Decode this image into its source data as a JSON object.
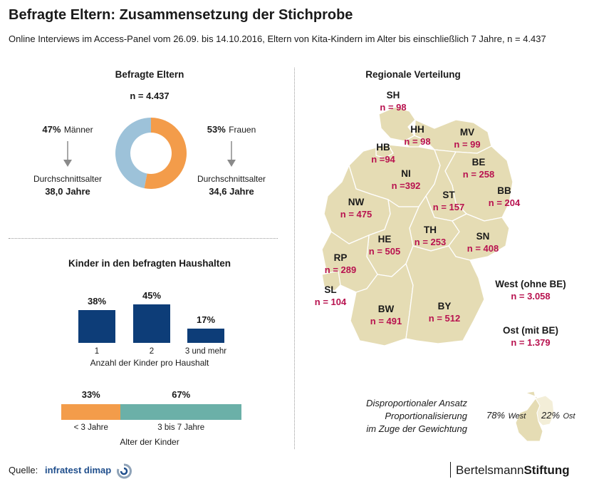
{
  "title": "Befragte Eltern: Zusammensetzung der Stichprobe",
  "subtitle": "Online Interviews im Access-Panel vom 26.09. bis 14.10.2016, Eltern von Kita-Kindern im Alter bis einschließlich 7 Jahre, n = 4.437",
  "colors": {
    "orange": "#f39c4a",
    "lightblue": "#9dc2d9",
    "navy": "#0d3d78",
    "teal": "#6bb0a8",
    "map_fill": "#e5dcb4",
    "map_stroke": "#ffffff",
    "magenta": "#b8124f"
  },
  "parents": {
    "title": "Befragte Eltern",
    "n": "n = 4.437",
    "men_pct": "47%",
    "men_label": "Männer",
    "women_pct": "53%",
    "women_label": "Frauen",
    "avg_label": "Durchschnittsalter",
    "men_avg": "38,0 Jahre",
    "women_avg": "34,6 Jahre"
  },
  "children": {
    "title": "Kinder in den befragten Haushalten",
    "xlabel": "Anzahl der Kinder pro Haushalt",
    "age_title": "Alter der Kinder"
  },
  "regional": {
    "title": "Regionale Verteilung",
    "west_label": "West (ohne BE)",
    "west_n": "n = 3.058",
    "east_label": "Ost (mit BE)",
    "east_n": "n = 1.379"
  },
  "weighting": {
    "line1": "Disproportionaler Ansatz",
    "line2": "Proportionalisierung",
    "line3": "im Zuge der Gewichtung",
    "west_pct": "78%",
    "west_label": "West",
    "east_pct": "22%",
    "east_label": "Ost"
  },
  "source": {
    "label": "Quelle:",
    "name": "infratest dimap",
    "logo": "infratest-dimap-logo-icon"
  },
  "brand": {
    "part1": "Bertelsmann",
    "part2": "Stiftung"
  },
  "chart_data": [
    {
      "type": "pie",
      "title": "Befragte Eltern",
      "categories": [
        "Männer",
        "Frauen"
      ],
      "values": [
        47,
        53
      ]
    },
    {
      "type": "bar",
      "title": "Kinder in den befragten Haushalten",
      "xlabel": "Anzahl der Kinder pro Haushalt",
      "categories": [
        "1",
        "2",
        "3 und mehr"
      ],
      "values": [
        38,
        45,
        17
      ],
      "labels": [
        "38%",
        "45%",
        "17%"
      ]
    },
    {
      "type": "bar",
      "title": "Alter der Kinder",
      "categories": [
        "< 3 Jahre",
        "3 bis 7 Jahre"
      ],
      "values": [
        33,
        67
      ],
      "labels": [
        "33%",
        "67%"
      ]
    },
    {
      "type": "table",
      "title": "Regionale Verteilung",
      "states": [
        {
          "code": "SH",
          "n": "n = 98"
        },
        {
          "code": "HH",
          "n": "n = 98"
        },
        {
          "code": "MV",
          "n": "n = 99"
        },
        {
          "code": "HB",
          "n": "n =94"
        },
        {
          "code": "NI",
          "n": "n =392"
        },
        {
          "code": "BE",
          "n": "n = 258"
        },
        {
          "code": "BB",
          "n": "n = 204"
        },
        {
          "code": "ST",
          "n": "n = 157"
        },
        {
          "code": "NW",
          "n": "n = 475"
        },
        {
          "code": "TH",
          "n": "n = 253"
        },
        {
          "code": "SN",
          "n": "n = 408"
        },
        {
          "code": "HE",
          "n": "n = 505"
        },
        {
          "code": "RP",
          "n": "n = 289"
        },
        {
          "code": "SL",
          "n": "n = 104"
        },
        {
          "code": "BW",
          "n": "n = 491"
        },
        {
          "code": "BY",
          "n": "n = 512"
        }
      ]
    }
  ]
}
